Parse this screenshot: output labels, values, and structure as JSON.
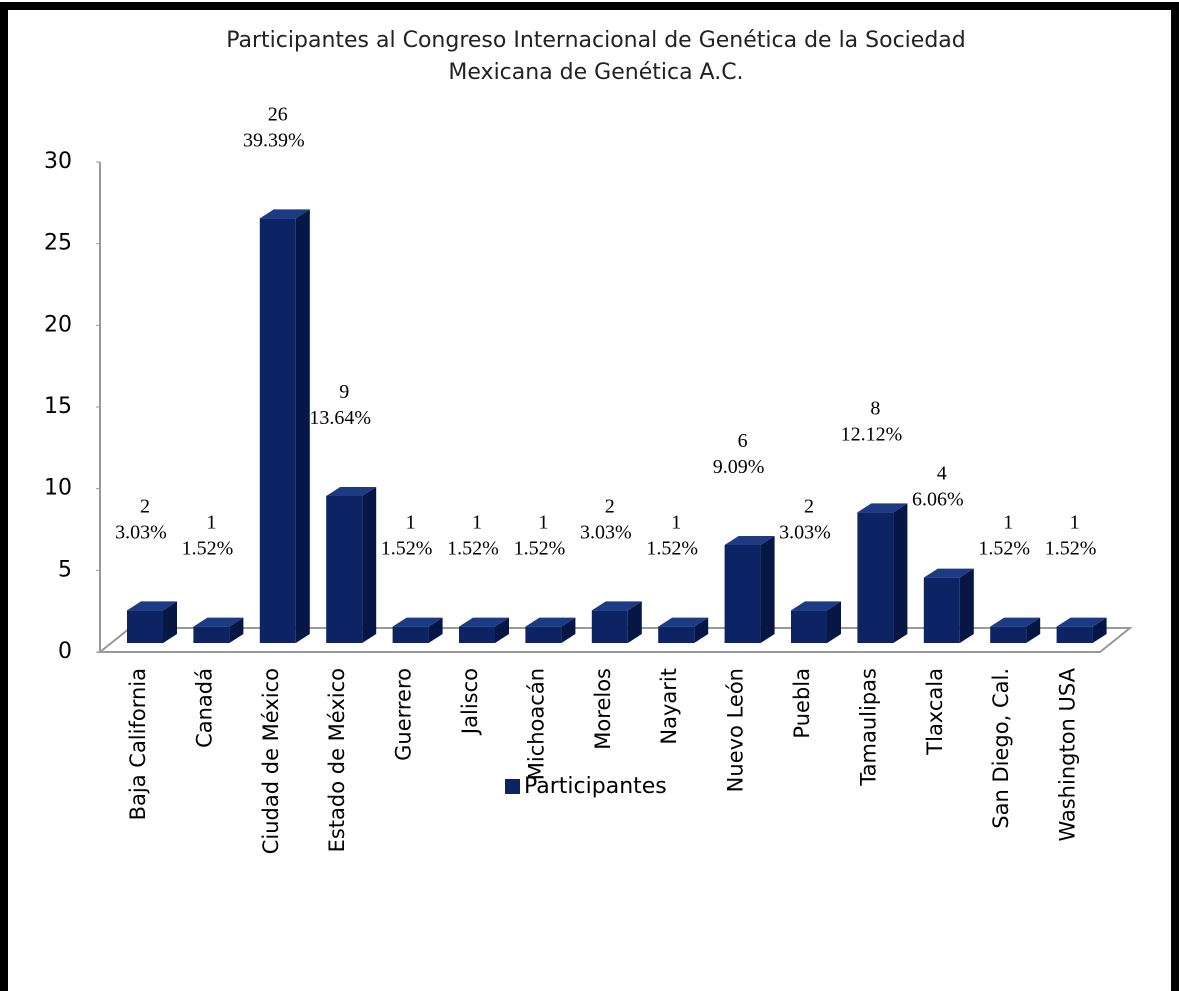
{
  "chart_data": {
    "type": "bar3d",
    "title": [
      "Participantes al Congreso Internacional  de Genética de la Sociedad",
      "Mexicana de Genética A.C."
    ],
    "categories": [
      "Baja California",
      "Canadá",
      "Ciudad de México",
      "Estado de México",
      "Guerrero",
      "Jalisco",
      "Michoacán",
      "Morelos",
      "Nayarit",
      "Nuevo León",
      "Puebla",
      "Tamaulipas",
      "Tlaxcala",
      "San Diego, Cal.",
      "Washington USA"
    ],
    "series": [
      {
        "name": "Participantes",
        "color": "#0c2463",
        "values": [
          2,
          1,
          26,
          9,
          1,
          1,
          1,
          2,
          1,
          6,
          2,
          8,
          4,
          1,
          1
        ],
        "percent_labels": [
          "3.03%",
          "1.52%",
          "39.39%",
          "13.64%",
          "1.52%",
          "1.52%",
          "1.52%",
          "3.03%",
          "1.52%",
          "9.09%",
          "3.03%",
          "12.12%",
          "6.06%",
          "1.52%",
          "1.52%"
        ]
      }
    ],
    "ylim": [
      0,
      30
    ],
    "yticks": [
      0,
      5,
      10,
      15,
      20,
      25,
      30
    ],
    "legend": "bottom"
  }
}
